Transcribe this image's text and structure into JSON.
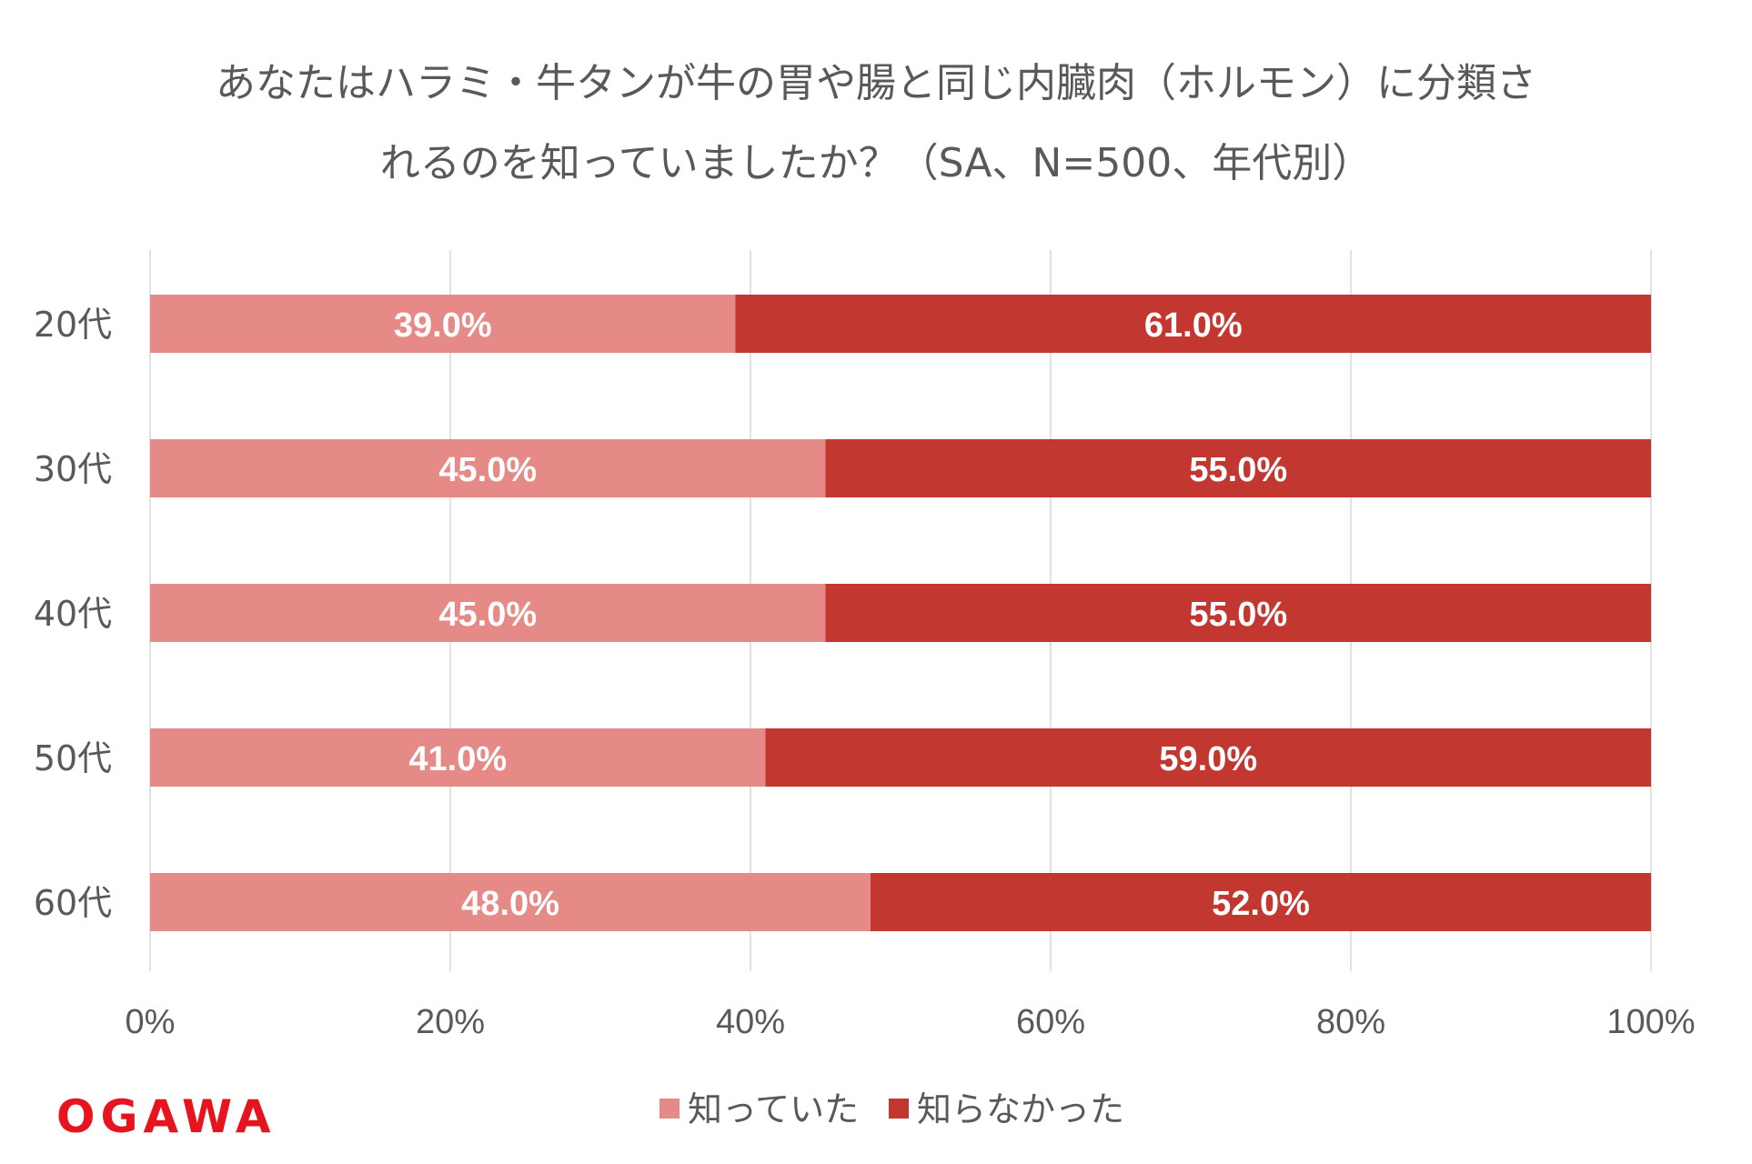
{
  "title_lines": [
    "あなたはハラミ・牛タンが牛の胃や腸と同じ内臓肉（ホルモン）に分類さ",
    "れるのを知っていましたか？（SA、N=500、年代別）"
  ],
  "logo_text": "OGAWA",
  "colors": {
    "knew": "#e58a86",
    "did_not_know": "#c33731",
    "grid": "#d9d9d9",
    "text": "#595959"
  },
  "chart_data": {
    "type": "bar",
    "orientation": "horizontal",
    "stacked": true,
    "categories": [
      "20代",
      "30代",
      "40代",
      "50代",
      "60代"
    ],
    "series": [
      {
        "name": "知っていた",
        "values": [
          39.0,
          45.0,
          45.0,
          41.0,
          48.0
        ],
        "labels": [
          "39.0%",
          "45.0%",
          "45.0%",
          "41.0%",
          "48.0%"
        ]
      },
      {
        "name": "知らなかった",
        "values": [
          61.0,
          55.0,
          55.0,
          59.0,
          52.0
        ],
        "labels": [
          "61.0%",
          "55.0%",
          "55.0%",
          "59.0%",
          "52.0%"
        ]
      }
    ],
    "xlim": [
      0,
      100
    ],
    "xticks": [
      "0%",
      "20%",
      "40%",
      "60%",
      "80%",
      "100%"
    ],
    "grid": true,
    "legend_position": "bottom"
  }
}
